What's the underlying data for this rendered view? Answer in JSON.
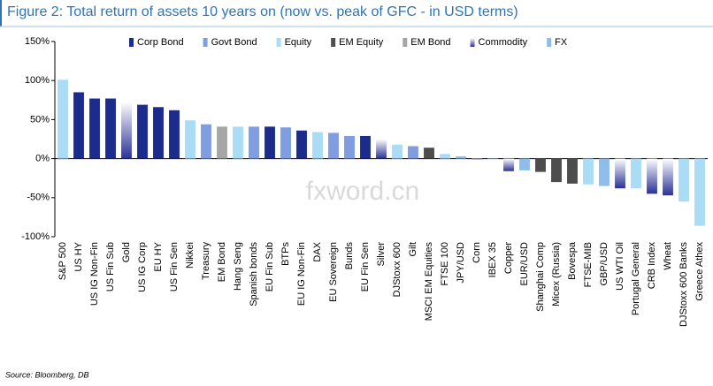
{
  "chart_data": {
    "type": "bar",
    "title": "Figure 2: Total return of assets 10 years on (now vs. peak of GFC - in USD terms)",
    "source": "Source: Bloomberg, DB",
    "watermark": "fxword.cn",
    "categories": [
      "S&P 500",
      "US HY",
      "US IG Non-Fin",
      "US Fin Sub",
      "Gold",
      "US IG Corp",
      "EU HY",
      "US Fin Sen",
      "Nikkei",
      "Treasury",
      "EM Bond",
      "Hang Seng",
      "Spanish bonds",
      "EU Fin Sub",
      "BTPs",
      "EU IG Non-Fin",
      "DAX",
      "EU Sovereign",
      "Bunds",
      "EU Fin Sen",
      "Silver",
      "DJStoxx 600",
      "Gilt",
      "MSCI EM Equities",
      "FTSE 100",
      "JPY/USD",
      "Corn",
      "IBEX 35",
      "Copper",
      "EUR/USD",
      "Shanghai Comp",
      "Micex (Russia)",
      "Bovespa",
      "FTSE-MIB",
      "GBP/USD",
      "US WTI Oil",
      "Portugal General",
      "CRB Index",
      "Wheat",
      "DJStoxx 600 Banks",
      "Greece Athex"
    ],
    "series": [
      {
        "name": "Corp Bond",
        "color": "#1c2c8c",
        "values": [
          null,
          85,
          77,
          77,
          null,
          69,
          66,
          62,
          null,
          null,
          null,
          null,
          null,
          41,
          null,
          36,
          null,
          null,
          null,
          29,
          null,
          null,
          null,
          null,
          null,
          null,
          null,
          null,
          null,
          null,
          null,
          null,
          null,
          null,
          null,
          null,
          null,
          null,
          null,
          null,
          null
        ]
      },
      {
        "name": "Govt Bond",
        "color": "#7f9de0",
        "values": [
          null,
          null,
          null,
          null,
          null,
          null,
          null,
          null,
          null,
          44,
          null,
          null,
          41,
          null,
          40,
          null,
          null,
          33,
          29,
          null,
          null,
          null,
          16,
          null,
          null,
          null,
          null,
          null,
          null,
          null,
          null,
          null,
          null,
          null,
          null,
          null,
          null,
          null,
          null,
          null,
          null
        ]
      },
      {
        "name": "Equity",
        "color": "#aadcf5",
        "values": [
          101,
          null,
          null,
          null,
          null,
          null,
          null,
          null,
          49,
          null,
          null,
          41,
          null,
          null,
          null,
          null,
          34,
          null,
          null,
          null,
          null,
          18,
          null,
          null,
          6,
          null,
          null,
          -1,
          null,
          null,
          null,
          null,
          null,
          -33,
          null,
          null,
          -38,
          null,
          null,
          -55,
          -86
        ]
      },
      {
        "name": "EM Equity",
        "color": "#4d4d4d",
        "values": [
          null,
          null,
          null,
          null,
          null,
          null,
          null,
          null,
          null,
          null,
          null,
          null,
          null,
          null,
          null,
          null,
          null,
          null,
          null,
          null,
          null,
          null,
          null,
          14,
          null,
          null,
          null,
          null,
          null,
          null,
          -17,
          -30,
          -32,
          null,
          null,
          null,
          null,
          null,
          null,
          null,
          null
        ]
      },
      {
        "name": "EM Bond",
        "color": "#a6a6a6",
        "values": [
          null,
          null,
          null,
          null,
          null,
          null,
          null,
          null,
          null,
          null,
          41,
          null,
          null,
          null,
          null,
          null,
          null,
          null,
          null,
          null,
          null,
          null,
          null,
          null,
          null,
          null,
          null,
          null,
          null,
          null,
          null,
          null,
          null,
          null,
          null,
          null,
          null,
          null,
          null,
          null,
          null
        ]
      },
      {
        "name": "Commodity",
        "color": "#2a3196",
        "gradient": true,
        "values": [
          null,
          null,
          null,
          null,
          73,
          null,
          null,
          null,
          null,
          null,
          null,
          null,
          null,
          null,
          null,
          null,
          null,
          null,
          null,
          null,
          25,
          null,
          null,
          null,
          null,
          null,
          -1,
          null,
          -16,
          null,
          null,
          null,
          null,
          null,
          null,
          -38,
          null,
          -45,
          -47,
          null,
          null
        ]
      },
      {
        "name": "FX",
        "color": "#8fbdea",
        "values": [
          null,
          null,
          null,
          null,
          null,
          null,
          null,
          null,
          null,
          null,
          null,
          null,
          null,
          null,
          null,
          null,
          null,
          null,
          null,
          null,
          null,
          null,
          null,
          null,
          null,
          3,
          null,
          null,
          null,
          -15,
          null,
          null,
          null,
          null,
          -35,
          null,
          null,
          null,
          null,
          null,
          null
        ]
      }
    ],
    "ylim": [
      -100,
      150
    ],
    "yticks": [
      {
        "value": -100,
        "label": "-100%"
      },
      {
        "value": -50,
        "label": "-50%"
      },
      {
        "value": 0,
        "label": "0%"
      },
      {
        "value": 50,
        "label": "50%"
      },
      {
        "value": 100,
        "label": "100%"
      },
      {
        "value": 150,
        "label": "150%"
      }
    ],
    "legend": "top"
  }
}
